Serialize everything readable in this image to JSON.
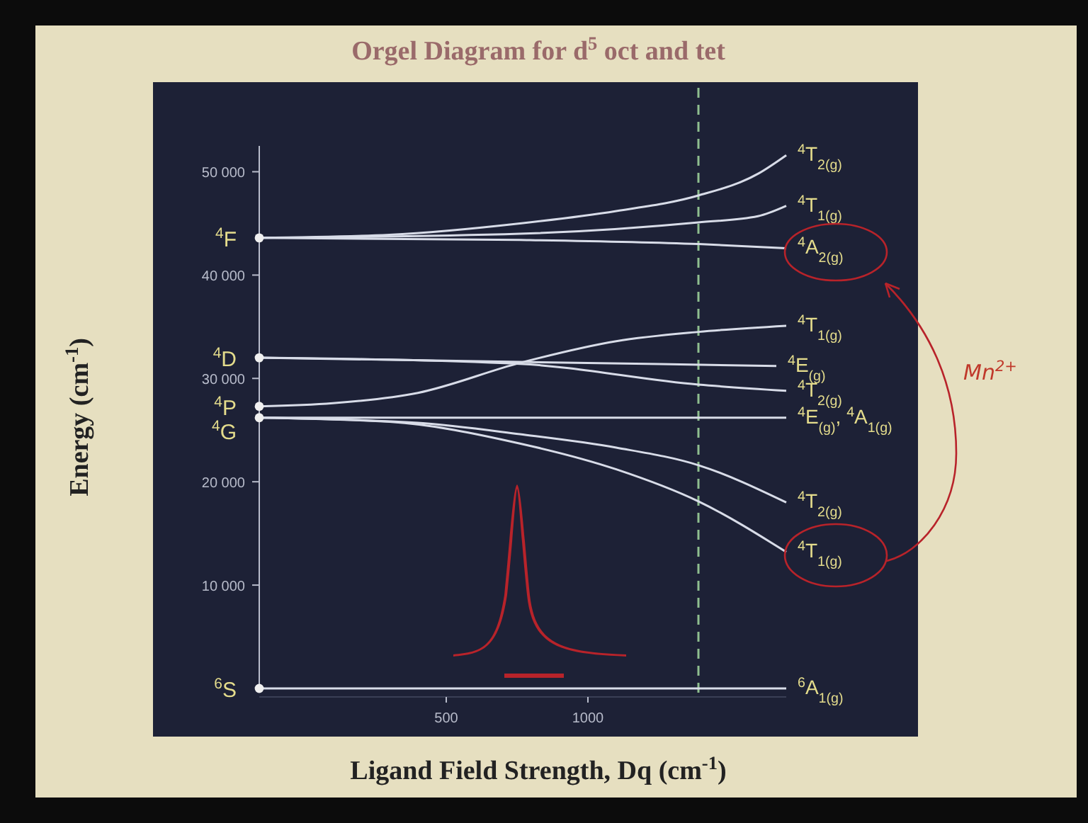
{
  "chart_data": {
    "type": "line",
    "title": "Orgel Diagram for d$^{5}$ oct and tet",
    "xlabel": "Ligand Field Strength, Dq (cm$^{-1}$)",
    "ylabel": "Energy (cm$^{-1}$)",
    "xlim": [
      -160,
      1700
    ],
    "xticks": [
      500,
      1000
    ],
    "ylim": [
      0,
      52500
    ],
    "yticks": [
      {
        "value": 10000,
        "label": "10 000"
      },
      {
        "value": 20000,
        "label": "20 000"
      },
      {
        "value": 30000,
        "label": "30 000"
      },
      {
        "value": 40000,
        "label": "40 000"
      },
      {
        "value": 50000,
        "label": "50 000"
      }
    ],
    "grid": false,
    "line_style": "solid",
    "marker": "none",
    "series": [
      {
        "name": "$^{4}$T$_{2(g)}$",
        "color": "#d8dce8",
        "x": [
          -160,
          300,
          760,
          1100,
          1390,
          1600,
          1700
        ],
        "values": [
          43600,
          43900,
          45000,
          46200,
          47700,
          49800,
          51600
        ]
      },
      {
        "name": "$^{4}$T$_{1(g)}$",
        "color": "#d8dce8",
        "x": [
          -160,
          760,
          1390,
          1600,
          1700
        ],
        "values": [
          43600,
          44000,
          45100,
          45700,
          46700
        ]
      },
      {
        "name": "$^{4}$A$_{2(g)}$",
        "color": "#d8dce8",
        "x": [
          -160,
          760,
          1390,
          1700
        ],
        "values": [
          43600,
          43400,
          43000,
          42600
        ]
      },
      {
        "name": "$^{4}$T$_{1(g)}$",
        "color": "#d8dce8",
        "x": [
          -160,
          100,
          400,
          760,
          1100,
          1390,
          1700
        ],
        "values": [
          27300,
          27600,
          28600,
          31500,
          33600,
          34500,
          35100
        ]
      },
      {
        "name": "$^{4}$E$_{(g)}$",
        "color": "#d8dce8",
        "x": [
          -160,
          760,
          1665
        ],
        "values": [
          32000,
          31600,
          31200
        ]
      },
      {
        "name": "$^{4}$T$_{2(g)}$",
        "color": "#d8dce8",
        "x": [
          -160,
          760,
          1390,
          1700
        ],
        "values": [
          32000,
          31400,
          29400,
          28800
        ]
      },
      {
        "name": "$^{4}$E$_{(g)}$, $^{4}$A$_{1(g)}$",
        "color": "#d8dce8",
        "x": [
          -160,
          1700
        ],
        "values": [
          26200,
          26200
        ]
      },
      {
        "name": "$^{4}$T$_{2(g)}$",
        "color": "#d8dce8",
        "x": [
          -160,
          400,
          760,
          1100,
          1390,
          1700
        ],
        "values": [
          26200,
          25700,
          24600,
          23300,
          21600,
          18000
        ]
      },
      {
        "name": "$^{4}$T$_{1(g)}$",
        "color": "#d8dce8",
        "x": [
          -160,
          300,
          760,
          1100,
          1390,
          1700
        ],
        "values": [
          26200,
          25800,
          23700,
          21200,
          18100,
          13200
        ]
      },
      {
        "name": "$^{6}$A$_{1(g)}$",
        "color": "#d8dce8",
        "x": [
          -160,
          1700
        ],
        "values": [
          0,
          0
        ]
      },
      {
        "type": "scatter",
        "name": "$^{4}$F",
        "marker": "circle",
        "color": "#f0f0f0",
        "x": [
          -160
        ],
        "values": [
          43600
        ]
      },
      {
        "type": "scatter",
        "name": "$^{4}$D",
        "marker": "circle",
        "color": "#f0f0f0",
        "x": [
          -160
        ],
        "values": [
          32000
        ]
      },
      {
        "type": "scatter",
        "name": "$^{4}$P",
        "marker": "circle",
        "color": "#f0f0f0",
        "x": [
          -160
        ],
        "values": [
          27300
        ]
      },
      {
        "type": "scatter",
        "name": "$^{4}$G",
        "marker": "circle",
        "color": "#f0f0f0",
        "x": [
          -160
        ],
        "values": [
          26200
        ]
      },
      {
        "type": "scatter",
        "name": "$^{6}$S",
        "marker": "circle",
        "color": "#f0f0f0",
        "x": [
          -160
        ],
        "values": [
          0
        ]
      }
    ],
    "ref_lines": [
      {
        "axis": "x",
        "value": 1390,
        "color": "#8fbf8f",
        "line_style": "dashed"
      }
    ],
    "annotations": [
      "Mn$^{2+}$"
    ]
  }
}
